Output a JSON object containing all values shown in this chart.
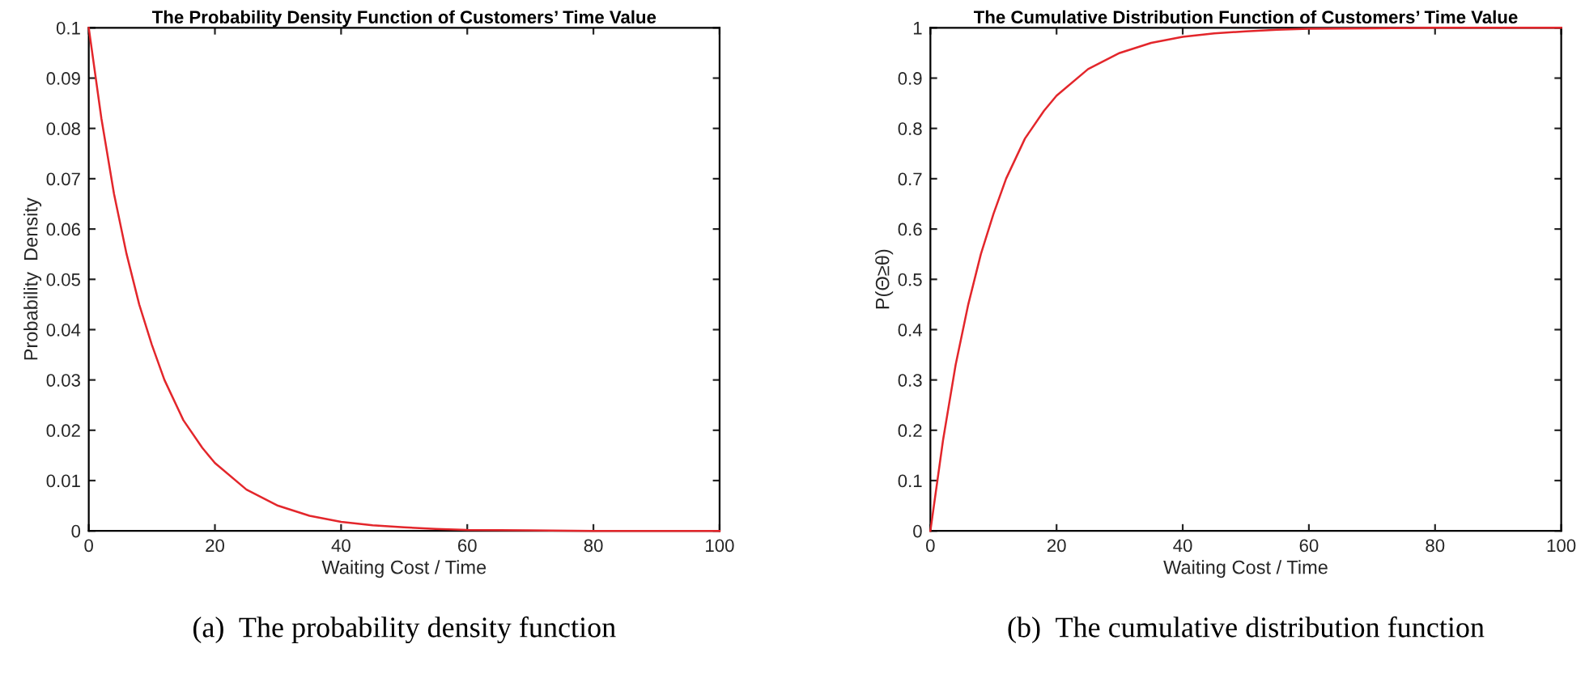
{
  "chart_data": [
    {
      "type": "line",
      "title": "The Probability Density Function of Customers’ Time Value",
      "xlabel": "Waiting Cost / Time",
      "ylabel": "Probability  Density",
      "annotations": [
        "(a)  The probability density function"
      ],
      "xlim": [
        0,
        100
      ],
      "ylim": [
        0,
        0.1
      ],
      "xticks": [
        0,
        20,
        40,
        60,
        80,
        100
      ],
      "yticks": [
        0,
        0.01,
        0.02,
        0.03,
        0.04,
        0.05,
        0.06,
        0.07,
        0.08,
        0.09,
        0.1
      ],
      "series": [
        {
          "color": "#e3262b",
          "x": [
            0,
            2,
            4,
            6,
            8,
            10,
            12,
            15,
            18,
            20,
            25,
            30,
            35,
            40,
            45,
            50,
            55,
            60,
            70,
            80,
            90,
            100
          ],
          "values": [
            0.1,
            0.082,
            0.067,
            0.055,
            0.045,
            0.037,
            0.03,
            0.022,
            0.0165,
            0.0135,
            0.0082,
            0.005,
            0.003,
            0.0018,
            0.0011,
            0.0007,
            0.0004,
            0.0002,
            0.0001,
            0,
            0,
            0
          ]
        }
      ]
    },
    {
      "type": "line",
      "title": "The Cumulative Distribution Function of Customers’ Time Value",
      "xlabel": "Waiting Cost / Time",
      "ylabel": "P(Θ≥θ)",
      "annotations": [
        "(b)  The cumulative distribution function"
      ],
      "xlim": [
        0,
        100
      ],
      "ylim": [
        0,
        1
      ],
      "xticks": [
        0,
        20,
        40,
        60,
        80,
        100
      ],
      "yticks": [
        0,
        0.1,
        0.2,
        0.3,
        0.4,
        0.5,
        0.6,
        0.7,
        0.8,
        0.9,
        1
      ],
      "series": [
        {
          "color": "#e3262b",
          "x": [
            0,
            2,
            4,
            6,
            8,
            10,
            12,
            15,
            18,
            20,
            25,
            30,
            35,
            40,
            45,
            50,
            55,
            60,
            70,
            80,
            90,
            100
          ],
          "values": [
            0,
            0.18,
            0.33,
            0.45,
            0.55,
            0.63,
            0.7,
            0.78,
            0.835,
            0.865,
            0.918,
            0.95,
            0.97,
            0.982,
            0.989,
            0.993,
            0.996,
            0.998,
            0.999,
            1,
            1,
            1
          ]
        }
      ]
    }
  ]
}
